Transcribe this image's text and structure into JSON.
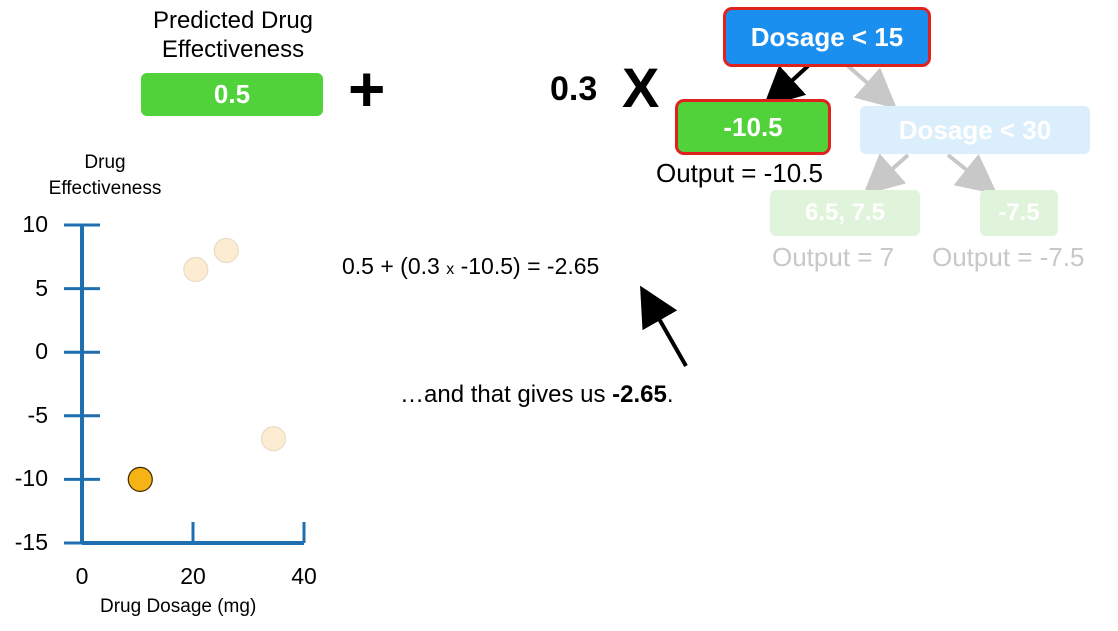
{
  "prediction": {
    "title": "Predicted Drug Effectiveness",
    "value": "0.5"
  },
  "plus_symbol": "+",
  "learning_rate": "0.3",
  "times_symbol": "X",
  "tree": {
    "root": "Dosage < 15",
    "left_leaf": "-10.5",
    "left_output": "Output = -10.5",
    "right_node": "Dosage < 30",
    "right_left_leaf": "6.5, 7.5",
    "right_left_output": "Output = 7",
    "right_right_leaf": "-7.5",
    "right_right_output": "Output = -7.5",
    "colors": {
      "root": "#1a8ff0",
      "leaf": "#52d23a",
      "highlight": "#e0221f",
      "faded": "#c8c8c8"
    }
  },
  "equation": {
    "left": "0.5 + (0.3",
    "times": "x",
    "right": "-10.5) = -2.65"
  },
  "caption": {
    "prefix": "…and that gives us ",
    "value": "-2.65",
    "suffix": "."
  },
  "chart_data": {
    "type": "scatter",
    "ylabel": "Drug Effectiveness",
    "xlabel": "Drug Dosage (mg)",
    "xlim": [
      0,
      40
    ],
    "ylim": [
      -15,
      10
    ],
    "xticks": [
      "0",
      "20",
      "40"
    ],
    "yticks": [
      "10",
      "5",
      "0",
      "-5",
      "-10",
      "-15"
    ],
    "points": [
      {
        "x": 20.5,
        "y": 6.5,
        "highlighted": false
      },
      {
        "x": 26,
        "y": 8,
        "highlighted": false
      },
      {
        "x": 34.5,
        "y": -6.8,
        "highlighted": false
      },
      {
        "x": 10.5,
        "y": -10,
        "highlighted": true
      }
    ],
    "colors": {
      "axis": "#1f6fb0",
      "highlighted": "#f5b316",
      "faded": "#fbecd2"
    }
  }
}
